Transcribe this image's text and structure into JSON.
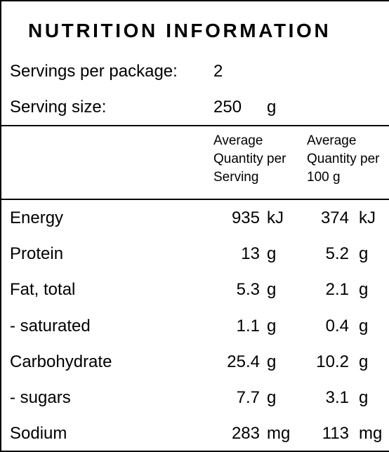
{
  "title": "NUTRITION INFORMATION",
  "servings_per_package": {
    "label": "Servings per package:",
    "value": "2"
  },
  "serving_size": {
    "label": "Serving size:",
    "value": "250",
    "unit": "g"
  },
  "headers": {
    "per_serving": [
      "Average",
      "Quantity per",
      "Serving"
    ],
    "per_100g": [
      "Average",
      "Quantity per",
      "100 g"
    ]
  },
  "nutrients": [
    {
      "name": "Energy",
      "serving": "935",
      "serving_unit": "kJ",
      "per100": "374",
      "per100_unit": "kJ"
    },
    {
      "name": "Protein",
      "serving": "13",
      "serving_unit": "g",
      "per100": "5.2",
      "per100_unit": "g"
    },
    {
      "name": "Fat, total",
      "serving": "5.3",
      "serving_unit": "g",
      "per100": "2.1",
      "per100_unit": "g"
    },
    {
      "name": "- saturated",
      "serving": "1.1",
      "serving_unit": "g",
      "per100": "0.4",
      "per100_unit": "g"
    },
    {
      "name": "Carbohydrate",
      "serving": "25.4",
      "serving_unit": "g",
      "per100": "10.2",
      "per100_unit": "g"
    },
    {
      "name": "- sugars",
      "serving": "7.7",
      "serving_unit": "g",
      "per100": "3.1",
      "per100_unit": "g"
    },
    {
      "name": "Sodium",
      "serving": "283",
      "serving_unit": "mg",
      "per100": "113",
      "per100_unit": "mg"
    }
  ]
}
